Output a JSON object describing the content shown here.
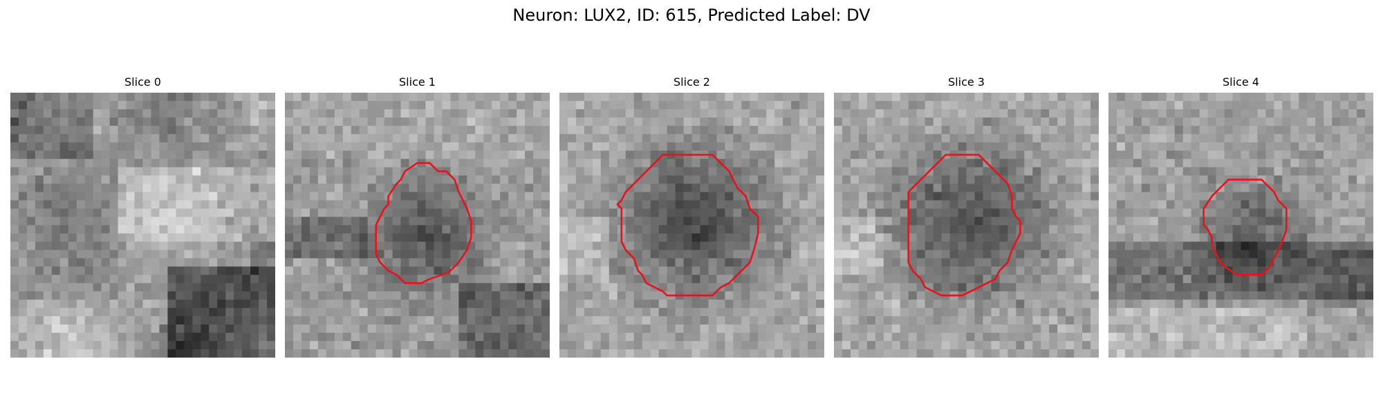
{
  "figure": {
    "title": "Neuron: LUX2, ID: 615, Predicted Label: DV"
  },
  "panels": [
    {
      "title": "Slice 0",
      "has_contour": false,
      "pattern": "bright-upper-dark-lower-right"
    },
    {
      "title": "Slice 1",
      "has_contour": true,
      "pattern": "dark-center-small"
    },
    {
      "title": "Slice 2",
      "has_contour": true,
      "pattern": "dark-center-large"
    },
    {
      "title": "Slice 3",
      "has_contour": true,
      "pattern": "dark-center-large"
    },
    {
      "title": "Slice 4",
      "has_contour": true,
      "pattern": "dark-center-medium"
    }
  ],
  "style": {
    "contour_color": "#e8121b",
    "colormap": "gray"
  }
}
